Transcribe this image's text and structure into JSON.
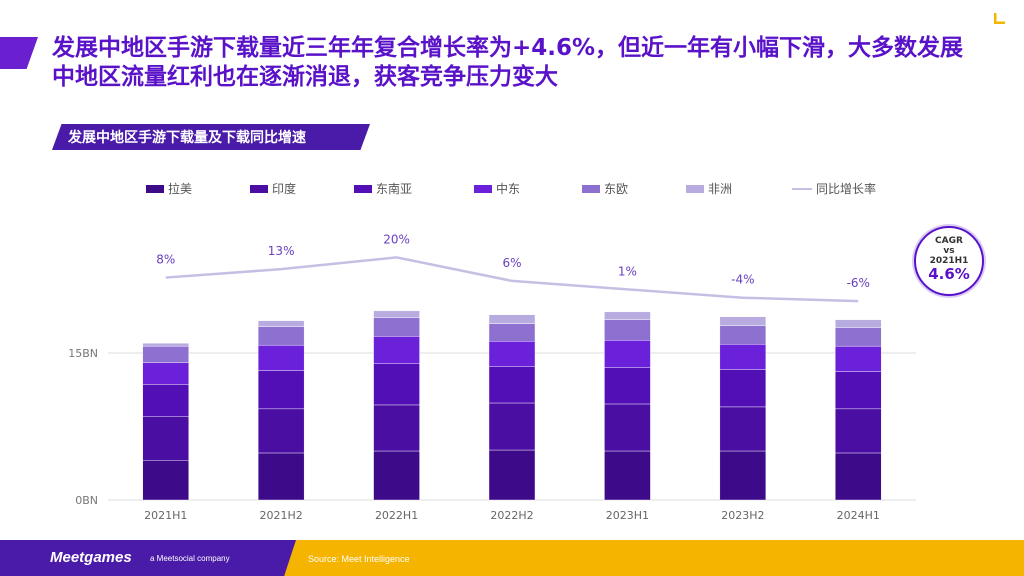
{
  "headline": "发展中地区手游下载量近三年年复合增长率为+4.6%，但近一年有小幅下滑，大多数发展中地区流量红利也在逐渐消退，获客竞争压力变大",
  "subtitle": "发展中地区手游下载量及下载同比增速",
  "cagr": {
    "line1": "CAGR",
    "line2": "vs",
    "line3": "2021H1",
    "value": "4.6%"
  },
  "footer": {
    "logo": "Meetgames",
    "tagline": "a Meetsocial company",
    "source": "Source: Meet Intelligence"
  },
  "colors": {
    "accent": "#5a12c9",
    "footer_yellow": "#f4b400",
    "footer_purple": "#4a1aa8",
    "line": "#c7bfe3"
  },
  "chart_data": {
    "type": "bar",
    "stacked": true,
    "categories": [
      "2021H1",
      "2021H2",
      "2022H1",
      "2022H2",
      "2023H1",
      "2023H2",
      "2024H1"
    ],
    "y_tick_labels": [
      "0BN",
      "15BN"
    ],
    "y_ticks": [
      0,
      15
    ],
    "ylim": [
      0,
      30
    ],
    "grid": true,
    "legend_position": "top",
    "series": [
      {
        "name": "拉美",
        "color": "#3d0a8a",
        "values": [
          4.0,
          4.8,
          5.0,
          5.1,
          5.0,
          5.0,
          4.8
        ]
      },
      {
        "name": "印度",
        "color": "#4a0ea3",
        "values": [
          4.5,
          4.5,
          4.7,
          4.8,
          4.8,
          4.5,
          4.5
        ]
      },
      {
        "name": "东南亚",
        "color": "#520fb5",
        "values": [
          3.3,
          3.9,
          4.2,
          3.7,
          3.7,
          3.8,
          3.8
        ]
      },
      {
        "name": "中东",
        "color": "#6a21d9",
        "values": [
          2.2,
          2.6,
          2.8,
          2.6,
          2.8,
          2.6,
          2.6
        ]
      },
      {
        "name": "东欧",
        "color": "#8d70cf",
        "values": [
          1.7,
          1.9,
          1.9,
          1.8,
          2.1,
          1.9,
          1.9
        ]
      },
      {
        "name": "非洲",
        "color": "#b8abe0",
        "values": [
          0.3,
          0.6,
          0.7,
          0.9,
          0.8,
          0.9,
          0.8
        ]
      }
    ],
    "line_series": {
      "name": "同比增长率",
      "color": "#c7bfe3",
      "values": [
        8,
        13,
        20,
        6,
        1,
        -4,
        -6
      ],
      "labels": [
        "8%",
        "13%",
        "20%",
        "6%",
        "1%",
        "-4%",
        "-6%"
      ]
    }
  }
}
